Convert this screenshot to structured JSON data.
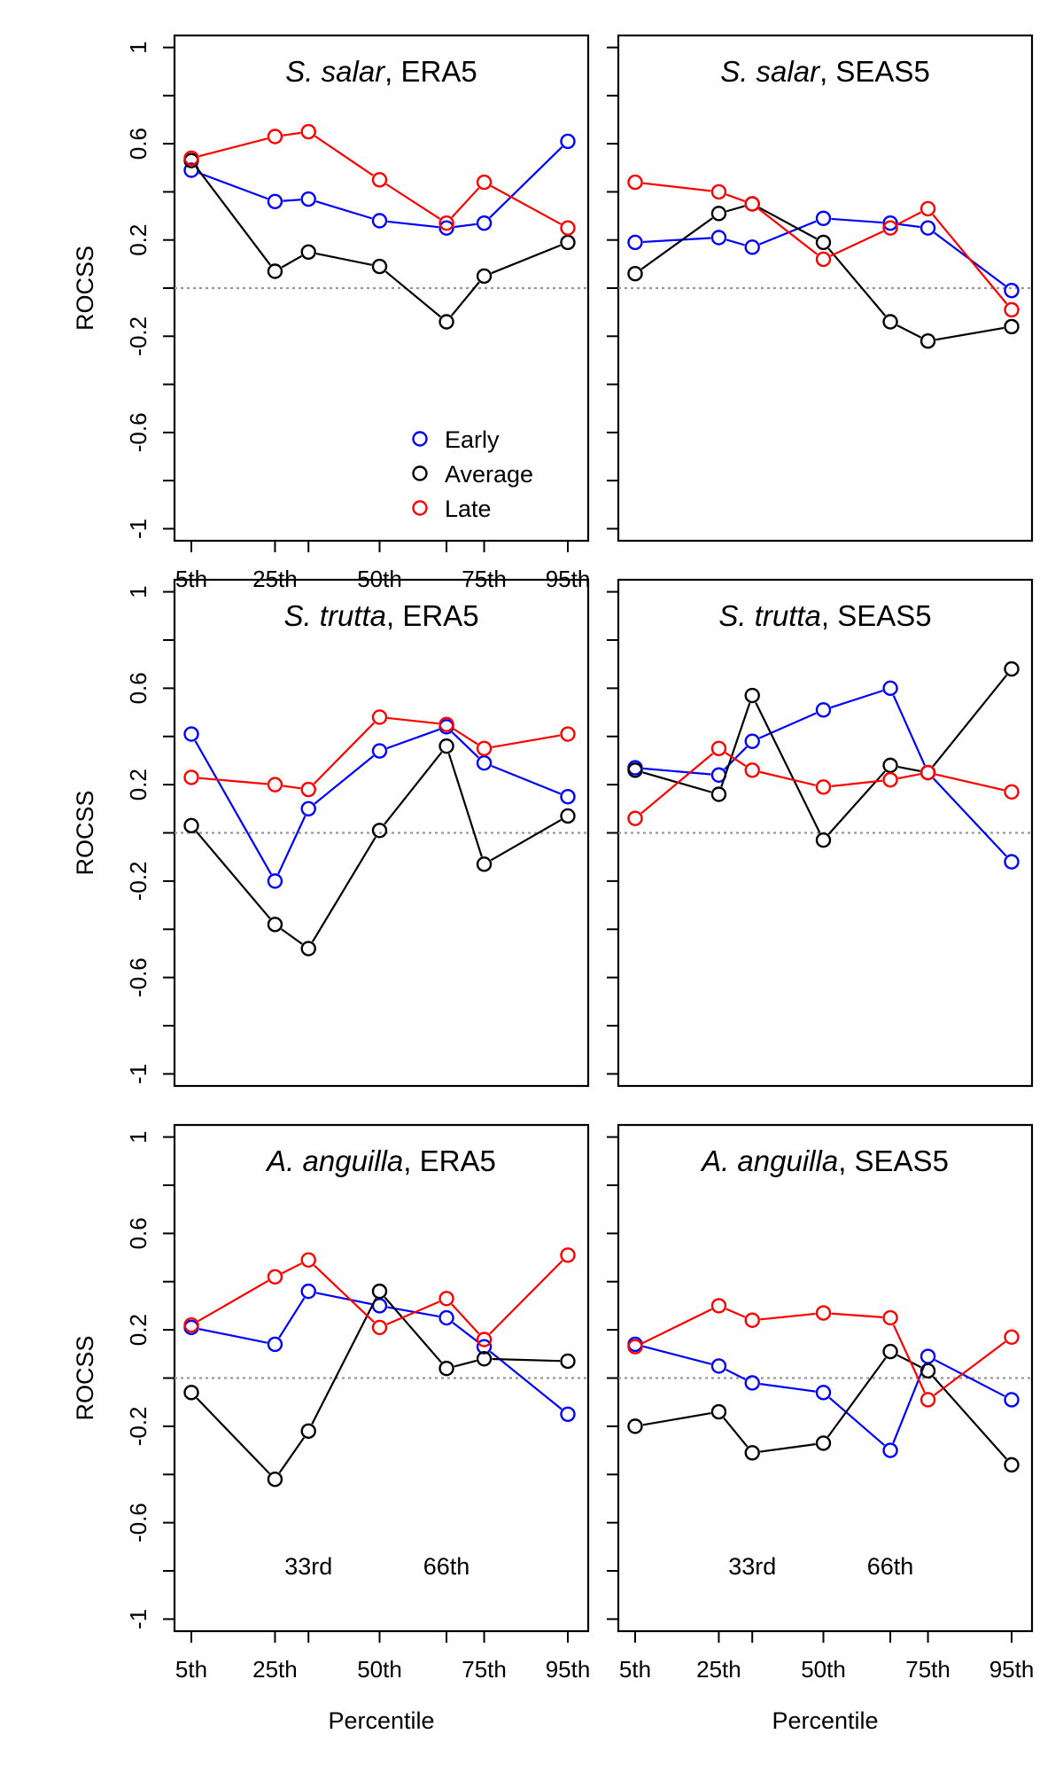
{
  "chart_data": [
    {
      "type": "line",
      "title_species": "S. salar",
      "title_source": ", ERA5",
      "ylabel": "ROCSS",
      "xlabel": "",
      "ylim": [
        -1.05,
        1.05
      ],
      "yticks": [
        "1",
        "0.6",
        "0.2",
        "-0.2",
        "-0.6",
        "-1"
      ],
      "ytick_values": [
        1,
        0.6,
        0.2,
        -0.2,
        -0.6,
        -1
      ],
      "x": [
        5,
        25,
        33,
        50,
        66,
        75,
        95
      ],
      "xticks": [
        "5th",
        "25th",
        "50th",
        "75th",
        "95th"
      ],
      "xtick_values": [
        5,
        25,
        50,
        75,
        95
      ],
      "reference_line": 0,
      "series": [
        {
          "name": "Early",
          "color": "#0000ff",
          "values": [
            0.49,
            0.36,
            0.37,
            0.28,
            0.25,
            0.27,
            0.61
          ]
        },
        {
          "name": "Average",
          "color": "#000000",
          "values": [
            0.53,
            0.07,
            0.15,
            0.09,
            -0.14,
            0.05,
            0.19
          ]
        },
        {
          "name": "Late",
          "color": "#ff0000",
          "values": [
            0.54,
            0.63,
            0.65,
            0.45,
            0.27,
            0.44,
            0.25
          ]
        }
      ],
      "legend": {
        "position": "bottom-right",
        "entries": [
          "Early",
          "Average",
          "Late"
        ]
      }
    },
    {
      "type": "line",
      "title_species": "S. salar",
      "title_source": ", SEAS5",
      "ylabel": "",
      "xlabel": "",
      "ylim": [
        -1.05,
        1.05
      ],
      "x": [
        5,
        25,
        33,
        50,
        66,
        75,
        95
      ],
      "reference_line": 0,
      "series": [
        {
          "color": "#0000ff",
          "values": [
            0.19,
            0.21,
            0.17,
            0.29,
            0.27,
            0.25,
            -0.01
          ]
        },
        {
          "color": "#000000",
          "values": [
            0.06,
            0.31,
            0.35,
            0.19,
            -0.14,
            -0.22,
            -0.16
          ]
        },
        {
          "color": "#ff0000",
          "values": [
            0.44,
            0.4,
            0.35,
            0.12,
            0.25,
            0.33,
            -0.09
          ]
        }
      ]
    },
    {
      "type": "line",
      "title_species": "S. trutta",
      "title_source": ", ERA5",
      "ylabel": "ROCSS",
      "xlabel": "",
      "ylim": [
        -1.05,
        1.05
      ],
      "yticks": [
        "1",
        "0.6",
        "0.2",
        "-0.2",
        "-0.6",
        "-1"
      ],
      "ytick_values": [
        1,
        0.6,
        0.2,
        -0.2,
        -0.6,
        -1
      ],
      "x": [
        5,
        25,
        33,
        50,
        66,
        75,
        95
      ],
      "reference_line": 0,
      "series": [
        {
          "color": "#0000ff",
          "values": [
            0.41,
            -0.2,
            0.1,
            0.34,
            0.44,
            0.29,
            0.15
          ]
        },
        {
          "color": "#000000",
          "values": [
            0.03,
            -0.38,
            -0.48,
            0.01,
            0.36,
            -0.13,
            0.07
          ]
        },
        {
          "color": "#ff0000",
          "values": [
            0.23,
            0.2,
            0.18,
            0.48,
            0.45,
            0.35,
            0.41
          ]
        }
      ]
    },
    {
      "type": "line",
      "title_species": "S. trutta",
      "title_source": ", SEAS5",
      "ylabel": "",
      "xlabel": "",
      "ylim": [
        -1.05,
        1.05
      ],
      "x": [
        5,
        25,
        33,
        50,
        66,
        75,
        95
      ],
      "reference_line": 0,
      "series": [
        {
          "color": "#0000ff",
          "values": [
            0.27,
            0.24,
            0.38,
            0.51,
            0.6,
            0.25,
            -0.12
          ]
        },
        {
          "color": "#000000",
          "values": [
            0.26,
            0.16,
            0.57,
            -0.03,
            0.28,
            0.25,
            0.68
          ]
        },
        {
          "color": "#ff0000",
          "values": [
            0.06,
            0.35,
            0.26,
            0.19,
            0.22,
            0.25,
            0.17
          ]
        }
      ]
    },
    {
      "type": "line",
      "title_species": "A. anguilla",
      "title_source": ", ERA5",
      "ylabel": "ROCSS",
      "xlabel": "Percentile",
      "ylim": [
        -1.05,
        1.05
      ],
      "yticks": [
        "1",
        "0.6",
        "0.2",
        "-0.2",
        "-0.6",
        "-1"
      ],
      "ytick_values": [
        1,
        0.6,
        0.2,
        -0.2,
        -0.6,
        -1
      ],
      "x": [
        5,
        25,
        33,
        50,
        66,
        75,
        95
      ],
      "xticks": [
        "5th",
        "25th",
        "50th",
        "75th",
        "95th"
      ],
      "xtick_values": [
        5,
        25,
        50,
        75,
        95
      ],
      "annotations": [
        {
          "text": "33rd",
          "x": 33
        },
        {
          "text": "66th",
          "x": 66
        }
      ],
      "reference_line": 0,
      "series": [
        {
          "color": "#0000ff",
          "values": [
            0.21,
            0.14,
            0.36,
            0.3,
            0.25,
            0.13,
            -0.15
          ]
        },
        {
          "color": "#000000",
          "values": [
            -0.06,
            -0.42,
            -0.22,
            0.36,
            0.04,
            0.08,
            0.07
          ]
        },
        {
          "color": "#ff0000",
          "values": [
            0.22,
            0.42,
            0.49,
            0.21,
            0.33,
            0.16,
            0.51
          ]
        }
      ]
    },
    {
      "type": "line",
      "title_species": "A. anguilla",
      "title_source": ", SEAS5",
      "ylabel": "",
      "xlabel": "Percentile",
      "ylim": [
        -1.05,
        1.05
      ],
      "x": [
        5,
        25,
        33,
        50,
        66,
        75,
        95
      ],
      "xticks": [
        "5th",
        "25th",
        "50th",
        "75th",
        "95th"
      ],
      "xtick_values": [
        5,
        25,
        50,
        75,
        95
      ],
      "annotations": [
        {
          "text": "33rd",
          "x": 33
        },
        {
          "text": "66th",
          "x": 66
        }
      ],
      "reference_line": 0,
      "series": [
        {
          "color": "#0000ff",
          "values": [
            0.14,
            0.05,
            -0.02,
            -0.06,
            -0.3,
            0.09,
            -0.09
          ]
        },
        {
          "color": "#000000",
          "values": [
            -0.2,
            -0.14,
            -0.31,
            -0.27,
            0.11,
            0.03,
            -0.36
          ]
        },
        {
          "color": "#ff0000",
          "values": [
            0.13,
            0.3,
            0.24,
            0.27,
            0.25,
            -0.09,
            0.17
          ]
        }
      ]
    }
  ]
}
